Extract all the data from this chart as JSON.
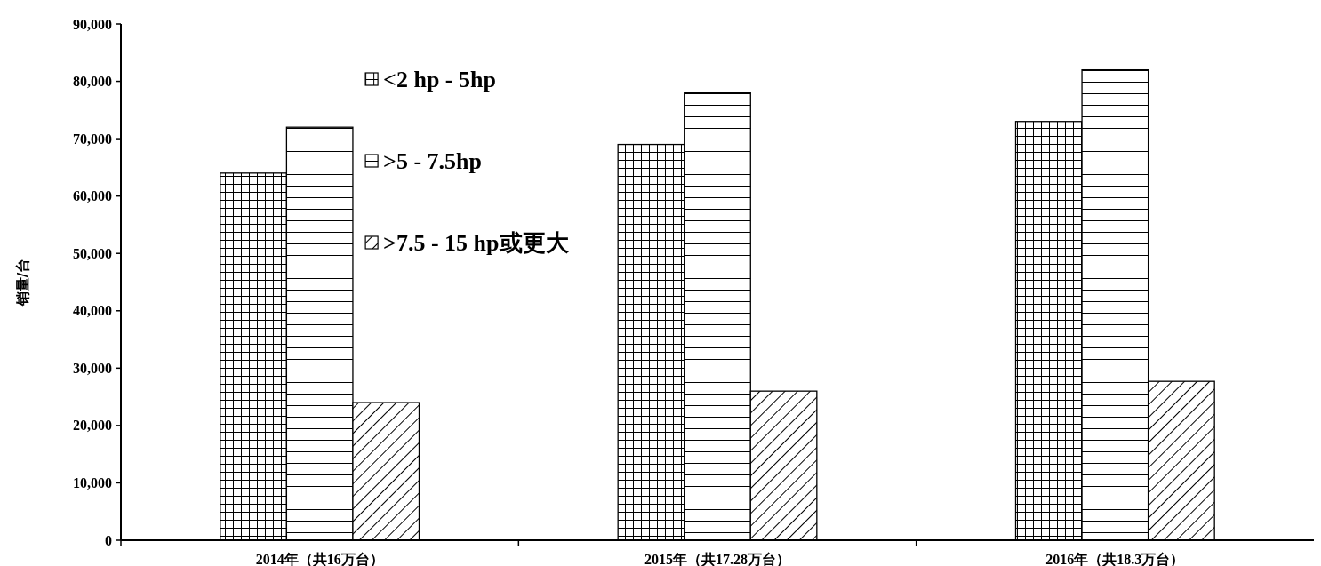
{
  "chart_data": {
    "type": "bar",
    "ylabel": "销量/台",
    "categories": [
      "2014年（共16万台）",
      "2015年（共17.28万台）",
      "2016年（共18.3万台）"
    ],
    "series": [
      {
        "name": "<2 hp - 5hp",
        "color": "#000000",
        "values": [
          64000,
          69000,
          73000
        ]
      },
      {
        "name": ">5 - 7.5hp",
        "color": "#000000",
        "values": [
          72000,
          78000,
          82000
        ]
      },
      {
        "name": ">7.5 - 15 hp或更大",
        "color": "#000000",
        "values": [
          24000,
          26000,
          27700
        ]
      }
    ],
    "ylim": [
      0,
      90000
    ],
    "yticks": [
      {
        "value": 0,
        "label": "0"
      },
      {
        "value": 10000,
        "label": "10,000"
      },
      {
        "value": 20000,
        "label": "20,000"
      },
      {
        "value": 30000,
        "label": "30,000"
      },
      {
        "value": 40000,
        "label": "40,000"
      },
      {
        "value": 50000,
        "label": "50,000"
      },
      {
        "value": 60000,
        "label": "60,000"
      },
      {
        "value": 70000,
        "label": "70,000"
      },
      {
        "value": 80000,
        "label": "80,000"
      },
      {
        "value": 90000,
        "label": "90,000"
      }
    ],
    "grid": false,
    "legend": "top left"
  }
}
